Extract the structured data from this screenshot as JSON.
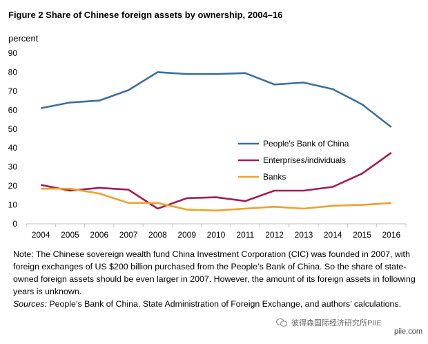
{
  "title": "Figure 2 Share of Chinese foreign assets by ownership, 2004–16",
  "chart_data": {
    "type": "line",
    "ylabel": "percent",
    "ylim": [
      0,
      90
    ],
    "yticks": [
      0,
      10,
      20,
      30,
      40,
      50,
      60,
      70,
      80,
      90
    ],
    "categories": [
      "2004",
      "2005",
      "2006",
      "2007",
      "2008",
      "2009",
      "2010",
      "2011",
      "2012",
      "2013",
      "2014",
      "2015",
      "2016"
    ],
    "series": [
      {
        "name": "People's Bank of China",
        "color": "#3a6fa0",
        "values": [
          61,
          64,
          65,
          70.5,
          80,
          79,
          79,
          79.5,
          73.5,
          74.5,
          71,
          63,
          51
        ]
      },
      {
        "name": "Enterprises/individuals",
        "color": "#a51b54",
        "values": [
          20.5,
          17.5,
          19,
          18,
          8,
          13.5,
          14,
          12,
          17.5,
          17.5,
          19.5,
          26.5,
          37.5
        ]
      },
      {
        "name": "Banks",
        "color": "#f0a02a",
        "values": [
          18.5,
          18.5,
          16,
          11,
          11,
          7.5,
          7,
          8,
          9,
          8,
          9.5,
          10,
          11
        ]
      }
    ],
    "legend_position": "center-right"
  },
  "note": {
    "text": "Note: The Chinese sovereign wealth fund China Investment Corporation (CIC) was founded in 2007, with foreign exchanges of US $200  billion purchased from the People’s Bank of China. So the share of state-owned foreign assets should be even larger in 2007.  However, the amount of its foreign assets in following years is unknown.",
    "sources_label": "Sources:",
    "sources_text": " People’s Bank of China, State Administration of Foreign Exchange, and authors’ calculations."
  },
  "watermark": "彼得森国际经济研究所PIIE",
  "site": "piie.com"
}
